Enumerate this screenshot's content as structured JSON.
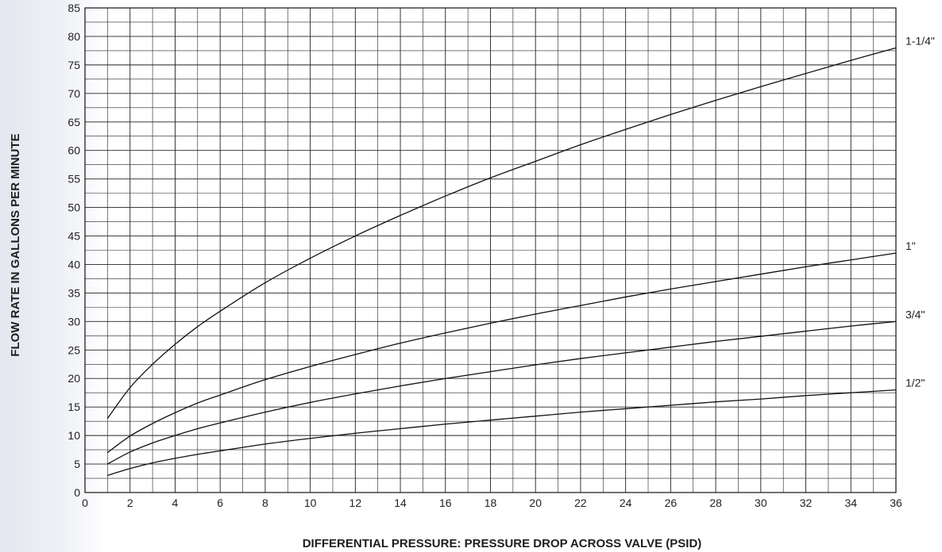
{
  "chart_data": {
    "type": "line",
    "xlabel": "DIFFERENTIAL PRESSURE: PRESSURE DROP ACROSS VALVE (PSID)",
    "ylabel": "FLOW RATE IN GALLONS PER MINUTE",
    "xlim": [
      0,
      36
    ],
    "ylim": [
      0,
      85
    ],
    "x_ticks": [
      0,
      2,
      4,
      6,
      8,
      10,
      12,
      14,
      16,
      18,
      20,
      22,
      24,
      26,
      28,
      30,
      32,
      34,
      36
    ],
    "y_ticks": [
      0,
      5,
      10,
      15,
      20,
      25,
      30,
      35,
      40,
      45,
      50,
      55,
      60,
      65,
      70,
      75,
      80,
      85
    ],
    "x_minor_step": 1,
    "y_minor_step": 2.5,
    "grid": true,
    "legend": "labels at right end of each line",
    "line_color": "#111111",
    "x": [
      1,
      2,
      3,
      4,
      5,
      6,
      8,
      10,
      12,
      14,
      16,
      18,
      20,
      22,
      24,
      26,
      28,
      30,
      32,
      34,
      36
    ],
    "series": [
      {
        "name": "1-1/4\"",
        "values": [
          13,
          18.4,
          22.5,
          26,
          29.1,
          31.8,
          36.8,
          41.1,
          45,
          48.6,
          52,
          55.2,
          58.1,
          61,
          63.7,
          66.3,
          68.8,
          71.2,
          73.5,
          75.8,
          78
        ]
      },
      {
        "name": "1\"",
        "values": [
          7,
          9.9,
          12.1,
          14,
          15.7,
          17.1,
          19.8,
          22.1,
          24.2,
          26.2,
          28,
          29.7,
          31.3,
          32.8,
          34.3,
          35.7,
          37,
          38.3,
          39.6,
          40.8,
          42
        ]
      },
      {
        "name": "3/4\"",
        "values": [
          5,
          7.1,
          8.7,
          10,
          11.2,
          12.2,
          14.1,
          15.8,
          17.3,
          18.7,
          20,
          21.2,
          22.4,
          23.5,
          24.5,
          25.5,
          26.5,
          27.4,
          28.3,
          29.2,
          30
        ]
      },
      {
        "name": "1/2\"",
        "values": [
          3,
          4.2,
          5.2,
          6,
          6.7,
          7.3,
          8.5,
          9.5,
          10.4,
          11.2,
          12,
          12.7,
          13.4,
          14.1,
          14.7,
          15.3,
          15.9,
          16.4,
          17,
          17.5,
          18
        ]
      }
    ]
  }
}
